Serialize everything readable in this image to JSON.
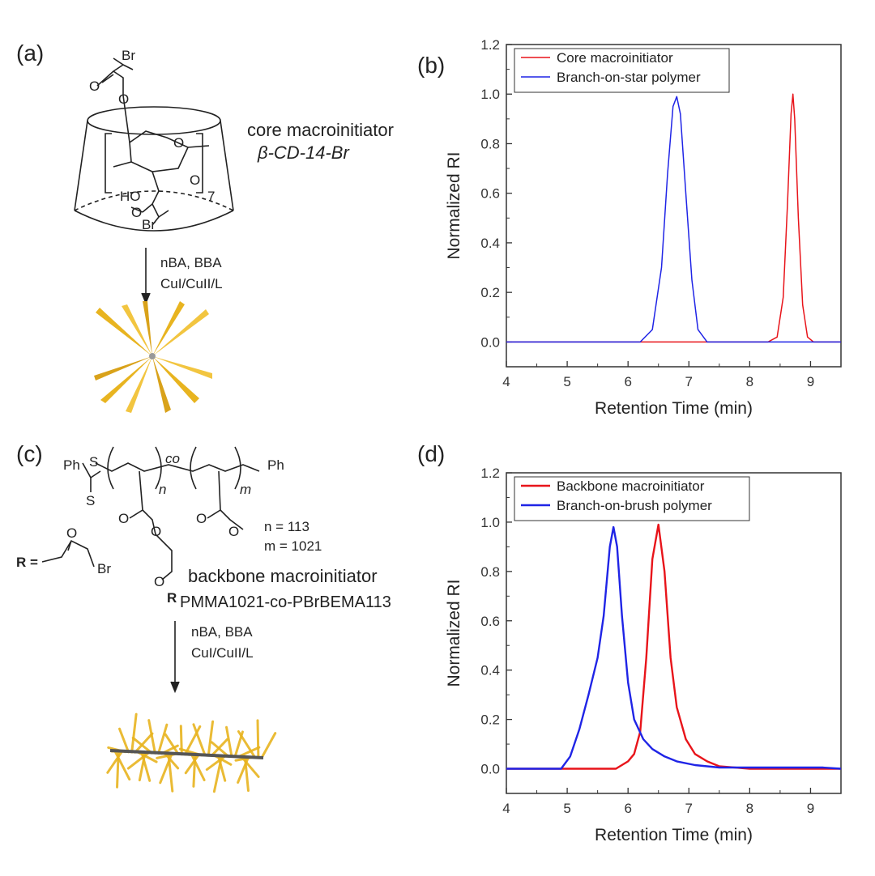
{
  "panels": {
    "a": {
      "label": "(a)",
      "br_top": "Br",
      "ring_o": "O",
      "ring_o2": "O",
      "ring_o3": "O",
      "repeat": "7",
      "ho": "HO",
      "ester_o": "O",
      "br_bottom": "Br",
      "name": "core macroinitiator",
      "code": "β-CD-14-Br",
      "reagents": {
        "line1": "nBA, BBA",
        "line2": "CuI/CuII/L"
      }
    },
    "c": {
      "label": "(c)",
      "ph_left": "Ph",
      "s1": "S",
      "s2": "S",
      "n_sub": "n",
      "co": "co",
      "m_sub": "m",
      "ph_right": "Ph",
      "o_left1": "O",
      "o_left2": "O",
      "o_right1": "O",
      "o_right2": "O",
      "o_chain": "O",
      "r_sub": "R",
      "n_value": "n = 113",
      "m_value": "m = 1021",
      "r_def": "R =",
      "r_o": "O",
      "r_br": "Br",
      "name": "backbone macroinitiator",
      "formula": "PMMA1021-co-PBrBEMA113",
      "reagents": {
        "line1": "nBA, BBA",
        "line2": "CuI/CuII/L"
      }
    },
    "b": {
      "label": "(b)"
    },
    "d": {
      "label": "(d)"
    }
  },
  "colors": {
    "red": "#e8141a",
    "blue": "#1f24e6",
    "gold": "#e8b420"
  },
  "chart_data": [
    {
      "panel": "b",
      "type": "line",
      "xlabel": "Retention Time (min)",
      "ylabel": "Normalized RI",
      "xlim": [
        4,
        9.5
      ],
      "ylim": [
        -0.1,
        1.2
      ],
      "xticks": [
        "4",
        "5",
        "6",
        "7",
        "8",
        "9"
      ],
      "yticks": [
        "0.0",
        "0.2",
        "0.4",
        "0.6",
        "0.8",
        "1.0",
        "1.2"
      ],
      "legend_position": "top-left",
      "series": [
        {
          "name": "Core macroinitiator",
          "color": "#e8141a",
          "x": [
            4.0,
            8.3,
            8.45,
            8.55,
            8.62,
            8.68,
            8.71,
            8.74,
            8.8,
            8.87,
            8.95,
            9.05,
            9.5
          ],
          "y": [
            0.0,
            0.0,
            0.02,
            0.18,
            0.55,
            0.92,
            1.0,
            0.9,
            0.5,
            0.15,
            0.02,
            0.0,
            0.0
          ]
        },
        {
          "name": "Branch-on-star polymer",
          "color": "#1f24e6",
          "x": [
            4.0,
            6.2,
            6.4,
            6.55,
            6.65,
            6.74,
            6.8,
            6.86,
            6.95,
            7.05,
            7.15,
            7.3,
            9.5
          ],
          "y": [
            0.0,
            0.0,
            0.05,
            0.3,
            0.68,
            0.95,
            0.99,
            0.92,
            0.6,
            0.25,
            0.05,
            0.0,
            0.0
          ]
        }
      ]
    },
    {
      "panel": "d",
      "type": "line",
      "xlabel": "Retention Time (min)",
      "ylabel": "Normalized RI",
      "xlim": [
        4,
        9.5
      ],
      "ylim": [
        -0.1,
        1.2
      ],
      "xticks": [
        "4",
        "5",
        "6",
        "7",
        "8",
        "9"
      ],
      "yticks": [
        "0.0",
        "0.2",
        "0.4",
        "0.6",
        "0.8",
        "1.0",
        "1.2"
      ],
      "legend_position": "top-left",
      "series": [
        {
          "name": "Backbone macroinitiator",
          "color": "#e8141a",
          "x": [
            4.0,
            5.8,
            6.0,
            6.1,
            6.2,
            6.3,
            6.4,
            6.5,
            6.6,
            6.7,
            6.8,
            6.95,
            7.1,
            7.3,
            7.5,
            8.0,
            9.5
          ],
          "y": [
            0.0,
            0.0,
            0.03,
            0.06,
            0.15,
            0.45,
            0.85,
            0.99,
            0.8,
            0.45,
            0.25,
            0.12,
            0.06,
            0.03,
            0.01,
            0.0,
            0.0
          ]
        },
        {
          "name": "Branch-on-brush polymer",
          "color": "#1f24e6",
          "x": [
            4.0,
            4.9,
            5.05,
            5.2,
            5.35,
            5.5,
            5.6,
            5.7,
            5.76,
            5.82,
            5.9,
            6.0,
            6.1,
            6.25,
            6.4,
            6.6,
            6.8,
            7.1,
            7.5,
            9.2,
            9.5
          ],
          "y": [
            0.0,
            0.0,
            0.05,
            0.16,
            0.3,
            0.45,
            0.62,
            0.9,
            0.98,
            0.9,
            0.62,
            0.35,
            0.2,
            0.12,
            0.08,
            0.05,
            0.03,
            0.015,
            0.005,
            0.005,
            0.0
          ]
        }
      ]
    }
  ]
}
